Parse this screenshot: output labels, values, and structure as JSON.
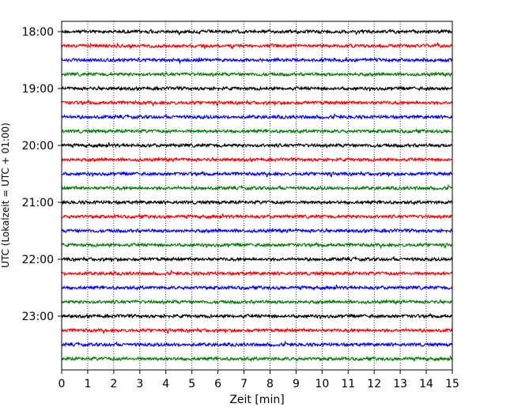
{
  "chart_data": {
    "type": "line",
    "title": "",
    "xlabel": "Zeit  [min]",
    "ylabel": "UTC (Lokalzeit = UTC + 01:00)",
    "xlim": [
      0,
      15
    ],
    "x_ticks": [
      0,
      1,
      2,
      3,
      4,
      5,
      6,
      7,
      8,
      9,
      10,
      11,
      12,
      13,
      14,
      15
    ],
    "x_tick_labels": [
      "0",
      "1",
      "2",
      "3",
      "4",
      "5",
      "6",
      "7",
      "8",
      "9",
      "10",
      "11",
      "12",
      "13",
      "14",
      "15"
    ],
    "y_tick_labels": [
      "18:00",
      "19:00",
      "20:00",
      "21:00",
      "22:00",
      "23:00"
    ],
    "traces_per_hour": 4,
    "trace_interval_min": 15,
    "num_traces": 24,
    "start_time": "18:00",
    "trace_colors": [
      "#000000",
      "#ff0000",
      "#0000ff",
      "#008000"
    ],
    "grid": {
      "vertical_dotted": true,
      "horizontal": false
    },
    "legend": "none"
  }
}
